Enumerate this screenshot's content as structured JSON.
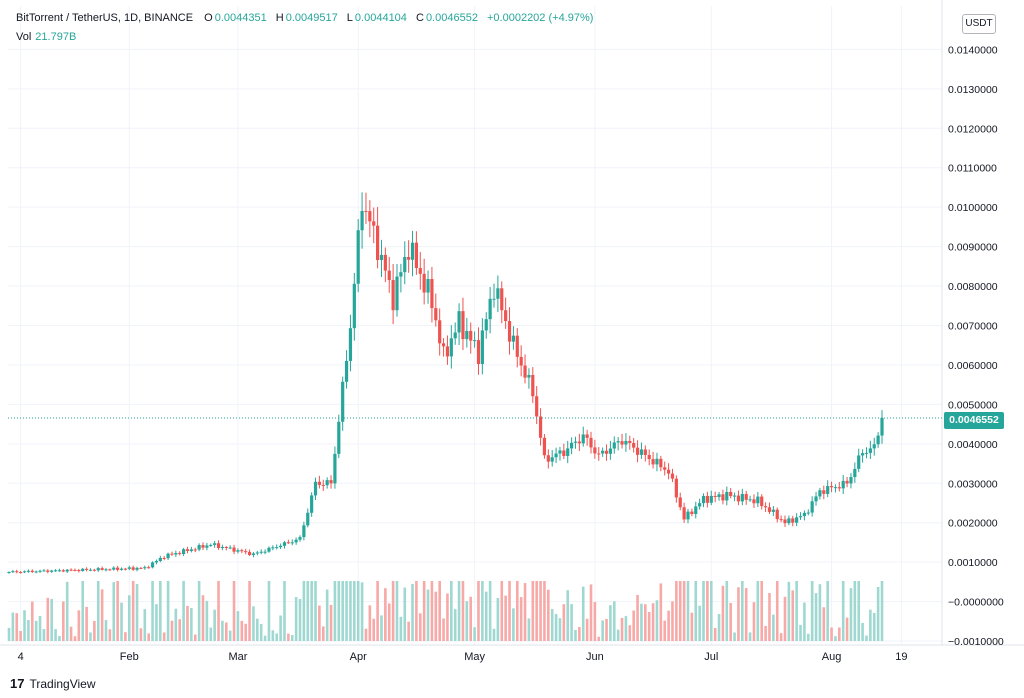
{
  "header": {
    "symbol": "BitTorrent / TetherUS, 1D, BINANCE",
    "o_label": "O",
    "o_value": "0.0044351",
    "h_label": "H",
    "h_value": "0.0049517",
    "l_label": "L",
    "l_value": "0.0044104",
    "c_label": "C",
    "c_value": "0.0046552",
    "change": "+0.0002202 (+4.97%)",
    "vol_label": "Vol",
    "vol_value": "21.797B"
  },
  "axis": {
    "currency": "USDT",
    "last_price": "0.0046552"
  },
  "branding": {
    "logo": "17",
    "name": "TradingView"
  },
  "colors": {
    "up": "#26a69a",
    "down": "#ef5350",
    "up_vol": "#9fd8d1",
    "down_vol": "#f7a9a7"
  },
  "chart_data": {
    "type": "candlestick",
    "ylim": [
      -0.0011,
      0.0151
    ],
    "yticks": [
      "0.0140000",
      "0.0130000",
      "0.0120000",
      "0.0110000",
      "0.0100000",
      "0.0090000",
      "0.0080000",
      "0.0070000",
      "0.0060000",
      "0.0050000",
      "0.0040000",
      "0.0030000",
      "0.0020000",
      "0.0010000",
      "−0.0000000",
      "−0.0010000"
    ],
    "ytick_values": [
      0.014,
      0.013,
      0.012,
      0.011,
      0.01,
      0.009,
      0.008,
      0.007,
      0.006,
      0.005,
      0.004,
      0.003,
      0.002,
      0.001,
      0,
      -0.001
    ],
    "xticks": [
      "4",
      "Feb",
      "Mar",
      "Apr",
      "May",
      "Jun",
      "Jul",
      "Aug",
      "19"
    ],
    "xtick_dates": [
      "2021-01-04",
      "2021-02-01",
      "2021-03-01",
      "2021-04-01",
      "2021-05-01",
      "2021-06-01",
      "2021-07-01",
      "2021-08-01",
      "2021-08-19"
    ],
    "last_price": 0.0046552,
    "price_key_points": [
      {
        "date": "2021-01-01",
        "close": 0.00075
      },
      {
        "date": "2021-02-05",
        "close": 0.00085
      },
      {
        "date": "2021-02-10",
        "close": 0.00115
      },
      {
        "date": "2021-02-22",
        "close": 0.00145
      },
      {
        "date": "2021-03-05",
        "close": 0.0012
      },
      {
        "date": "2021-03-17",
        "close": 0.0016
      },
      {
        "date": "2021-03-21",
        "close": 0.003
      },
      {
        "date": "2021-03-25",
        "close": 0.003
      },
      {
        "date": "2021-03-30",
        "close": 0.007
      },
      {
        "date": "2021-04-02",
        "close": 0.0102
      },
      {
        "date": "2021-04-06",
        "close": 0.009
      },
      {
        "date": "2021-04-10",
        "close": 0.0077
      },
      {
        "date": "2021-04-14",
        "close": 0.009
      },
      {
        "date": "2021-04-20",
        "close": 0.0076
      },
      {
        "date": "2021-04-23",
        "close": 0.0062
      },
      {
        "date": "2021-04-27",
        "close": 0.0071
      },
      {
        "date": "2021-05-02",
        "close": 0.0063
      },
      {
        "date": "2021-05-06",
        "close": 0.008
      },
      {
        "date": "2021-05-11",
        "close": 0.0065
      },
      {
        "date": "2021-05-16",
        "close": 0.0053
      },
      {
        "date": "2021-05-19",
        "close": 0.0036
      },
      {
        "date": "2021-05-24",
        "close": 0.0038
      },
      {
        "date": "2021-05-29",
        "close": 0.0042
      },
      {
        "date": "2021-06-02",
        "close": 0.0037
      },
      {
        "date": "2021-06-08",
        "close": 0.0041
      },
      {
        "date": "2021-06-14",
        "close": 0.0037
      },
      {
        "date": "2021-06-20",
        "close": 0.0033
      },
      {
        "date": "2021-06-24",
        "close": 0.0021
      },
      {
        "date": "2021-06-29",
        "close": 0.0026
      },
      {
        "date": "2021-07-05",
        "close": 0.0027
      },
      {
        "date": "2021-07-13",
        "close": 0.00255
      },
      {
        "date": "2021-07-20",
        "close": 0.002
      },
      {
        "date": "2021-07-25",
        "close": 0.0022
      },
      {
        "date": "2021-07-29",
        "close": 0.0028
      },
      {
        "date": "2021-08-05",
        "close": 0.003
      },
      {
        "date": "2021-08-09",
        "close": 0.0038
      },
      {
        "date": "2021-08-12",
        "close": 0.0039
      },
      {
        "date": "2021-08-14",
        "close": 0.00466
      }
    ]
  }
}
